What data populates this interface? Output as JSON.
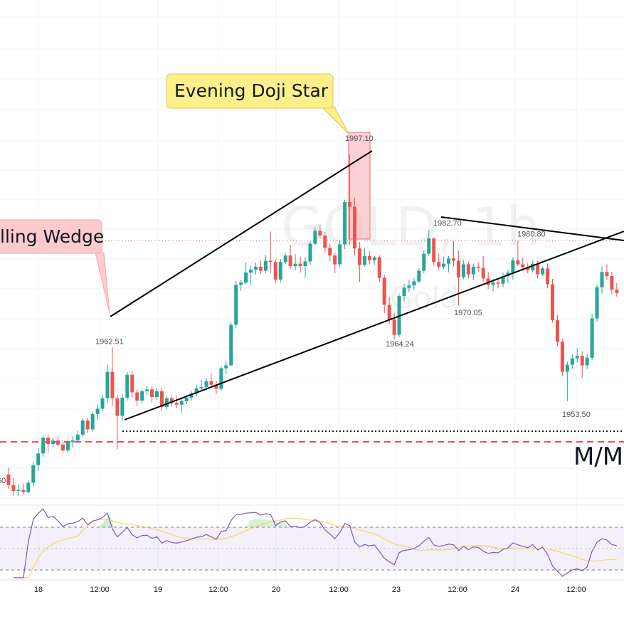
{
  "chart_data": {
    "type": "candlestick",
    "symbol_watermark": "GOLD, 1h",
    "symbol_watermark_sub": "Gold",
    "x_tick_labels": [
      "18",
      "12:00",
      "19",
      "12:00",
      "20",
      "12:00",
      "23",
      "12:00",
      "24",
      "12:00"
    ],
    "price_annotations": [
      {
        "label": "1962.51",
        "price": 1962.51
      },
      {
        "label": "1997.10",
        "price": 1997.1
      },
      {
        "label": "1982.70",
        "price": 1982.7
      },
      {
        "label": "1980.80",
        "price": 1980.8
      },
      {
        "label": "1970.05",
        "price": 1970.05
      },
      {
        "label": "1964.24",
        "price": 1964.24
      },
      {
        "label": "1953.50",
        "price": 1953.5
      },
      {
        "label": "60",
        "price": 1941.0
      }
    ],
    "callouts": [
      {
        "text": "Evening Doji Star",
        "color": "#fdf08a"
      },
      {
        "text": "lling Wedge",
        "color": "#fccbcd"
      }
    ],
    "side_label": "M/M",
    "candles": [
      [
        1941.0,
        1942.2,
        1938.6,
        1939.2
      ],
      [
        1939.2,
        1940.4,
        1937.4,
        1938.2
      ],
      [
        1938.2,
        1939.4,
        1937.3,
        1938.4
      ],
      [
        1938.4,
        1939.5,
        1937.6,
        1938.0
      ],
      [
        1938.0,
        1940.0,
        1937.8,
        1939.6
      ],
      [
        1939.6,
        1943.2,
        1939.0,
        1942.6
      ],
      [
        1942.6,
        1945.5,
        1941.6,
        1944.6
      ],
      [
        1944.6,
        1947.6,
        1944.0,
        1947.3
      ],
      [
        1947.3,
        1947.8,
        1944.7,
        1946.2
      ],
      [
        1946.2,
        1947.2,
        1945.6,
        1946.8
      ],
      [
        1946.8,
        1947.5,
        1945.8,
        1946.1
      ],
      [
        1946.1,
        1946.8,
        1944.7,
        1945.1
      ],
      [
        1945.1,
        1947.0,
        1944.7,
        1946.5
      ],
      [
        1946.5,
        1947.5,
        1945.6,
        1946.8
      ],
      [
        1946.8,
        1948.5,
        1946.4,
        1947.8
      ],
      [
        1947.8,
        1950.6,
        1947.5,
        1950.2
      ],
      [
        1950.2,
        1950.7,
        1948.1,
        1948.7
      ],
      [
        1948.7,
        1951.6,
        1948.3,
        1951.3
      ],
      [
        1951.3,
        1953.0,
        1950.2,
        1952.2
      ],
      [
        1952.2,
        1954.5,
        1951.8,
        1954.0
      ],
      [
        1954.0,
        1959.7,
        1953.1,
        1958.5
      ],
      [
        1958.5,
        1962.7,
        1952.7,
        1954.0
      ],
      [
        1954.0,
        1954.6,
        1945.3,
        1951.0
      ],
      [
        1951.0,
        1954.8,
        1950.1,
        1954.1
      ],
      [
        1954.1,
        1958.5,
        1953.6,
        1958.0
      ],
      [
        1958.0,
        1958.6,
        1954.1,
        1955.0
      ],
      [
        1955.0,
        1955.5,
        1952.7,
        1953.6
      ],
      [
        1953.6,
        1955.5,
        1953.1,
        1955.2
      ],
      [
        1955.2,
        1956.1,
        1954.5,
        1955.5
      ],
      [
        1955.5,
        1956.0,
        1953.2,
        1954.2
      ],
      [
        1954.2,
        1955.8,
        1953.6,
        1955.2
      ],
      [
        1955.2,
        1955.8,
        1951.8,
        1952.5
      ],
      [
        1952.5,
        1954.4,
        1952.1,
        1954.0
      ],
      [
        1954.0,
        1954.6,
        1952.5,
        1953.2
      ],
      [
        1953.2,
        1954.4,
        1952.3,
        1952.9
      ],
      [
        1952.9,
        1954.0,
        1951.5,
        1953.5
      ],
      [
        1953.5,
        1954.6,
        1953.0,
        1954.1
      ],
      [
        1954.1,
        1955.2,
        1953.6,
        1954.8
      ],
      [
        1954.8,
        1956.3,
        1954.3,
        1955.7
      ],
      [
        1955.7,
        1957.1,
        1955.4,
        1955.9
      ],
      [
        1955.9,
        1957.4,
        1955.3,
        1956.9
      ],
      [
        1956.9,
        1958.1,
        1955.9,
        1956.3
      ],
      [
        1956.3,
        1957.0,
        1954.7,
        1955.6
      ],
      [
        1955.6,
        1959.5,
        1955.3,
        1959.1
      ],
      [
        1959.1,
        1960.4,
        1958.1,
        1959.6
      ],
      [
        1959.6,
        1966.9,
        1959.5,
        1966.5
      ],
      [
        1966.5,
        1974.0,
        1966.0,
        1973.3
      ],
      [
        1973.3,
        1974.2,
        1972.3,
        1973.7
      ],
      [
        1973.7,
        1977.1,
        1973.4,
        1975.4
      ],
      [
        1975.4,
        1976.6,
        1973.3,
        1975.9
      ],
      [
        1975.9,
        1977.1,
        1975.1,
        1976.4
      ],
      [
        1976.4,
        1977.4,
        1975.2,
        1975.7
      ],
      [
        1975.7,
        1978.4,
        1975.2,
        1977.4
      ],
      [
        1977.4,
        1982.4,
        1975.3,
        1977.2
      ],
      [
        1977.2,
        1977.6,
        1973.6,
        1974.2
      ],
      [
        1974.2,
        1977.7,
        1973.7,
        1977.2
      ],
      [
        1977.2,
        1978.7,
        1976.8,
        1978.3
      ],
      [
        1978.3,
        1980.1,
        1976.0,
        1976.5
      ],
      [
        1976.5,
        1978.5,
        1975.8,
        1976.9
      ],
      [
        1976.9,
        1978.1,
        1975.4,
        1976.5
      ],
      [
        1976.5,
        1978.0,
        1974.5,
        1977.3
      ],
      [
        1977.3,
        1980.7,
        1976.7,
        1980.3
      ],
      [
        1980.3,
        1983.1,
        1980.1,
        1982.5
      ],
      [
        1982.5,
        1983.6,
        1981.2,
        1981.7
      ],
      [
        1981.7,
        1982.3,
        1978.8,
        1979.6
      ],
      [
        1979.6,
        1980.3,
        1977.3,
        1978.3
      ],
      [
        1978.3,
        1978.7,
        1975.3,
        1976.8
      ],
      [
        1976.8,
        1980.9,
        1976.3,
        1980.2
      ],
      [
        1980.2,
        1987.8,
        1979.4,
        1987.4
      ],
      [
        1987.4,
        1995.6,
        1980.1,
        1986.6
      ],
      [
        1986.6,
        1988.1,
        1978.3,
        1979.5
      ],
      [
        1979.5,
        1980.6,
        1973.8,
        1976.7
      ],
      [
        1976.7,
        1979.5,
        1976.4,
        1978.2
      ],
      [
        1978.2,
        1979.0,
        1976.8,
        1977.5
      ],
      [
        1977.5,
        1978.2,
        1976.7,
        1978.0
      ],
      [
        1978.0,
        1978.4,
        1973.8,
        1974.5
      ],
      [
        1974.5,
        1975.0,
        1968.5,
        1969.9
      ],
      [
        1969.9,
        1971.3,
        1966.7,
        1967.4
      ],
      [
        1967.4,
        1968.5,
        1964.0,
        1964.8
      ],
      [
        1964.8,
        1971.8,
        1964.4,
        1971.4
      ],
      [
        1971.4,
        1973.5,
        1970.5,
        1972.8
      ],
      [
        1972.8,
        1974.2,
        1972.1,
        1973.2
      ],
      [
        1973.2,
        1974.5,
        1972.5,
        1973.9
      ],
      [
        1973.9,
        1976.1,
        1973.6,
        1975.7
      ],
      [
        1975.7,
        1979.2,
        1975.3,
        1978.6
      ],
      [
        1978.6,
        1982.6,
        1978.2,
        1981.2
      ],
      [
        1981.2,
        1981.4,
        1976.5,
        1977.2
      ],
      [
        1977.2,
        1978.7,
        1976.0,
        1976.4
      ],
      [
        1976.4,
        1978.1,
        1976.0,
        1976.9
      ],
      [
        1976.9,
        1978.2,
        1975.4,
        1977.8
      ],
      [
        1977.8,
        1980.8,
        1976.4,
        1977.4
      ],
      [
        1977.4,
        1979.1,
        1969.8,
        1974.6
      ],
      [
        1974.6,
        1977.5,
        1974.3,
        1976.8
      ],
      [
        1976.8,
        1977.3,
        1974.4,
        1975.1
      ],
      [
        1975.1,
        1976.9,
        1974.1,
        1976.4
      ],
      [
        1976.4,
        1977.1,
        1975.6,
        1976.2
      ],
      [
        1976.2,
        1978.2,
        1973.8,
        1974.4
      ],
      [
        1974.4,
        1975.5,
        1972.6,
        1973.3
      ],
      [
        1973.3,
        1974.3,
        1972.2,
        1973.7
      ],
      [
        1973.7,
        1974.4,
        1972.7,
        1973.5
      ],
      [
        1973.5,
        1975.4,
        1972.9,
        1974.8
      ],
      [
        1974.8,
        1975.9,
        1973.6,
        1975.4
      ],
      [
        1975.4,
        1978.0,
        1974.2,
        1977.5
      ],
      [
        1977.5,
        1980.8,
        1976.5,
        1976.8
      ],
      [
        1976.8,
        1977.9,
        1975.6,
        1976.3
      ],
      [
        1976.3,
        1977.0,
        1975.3,
        1975.8
      ],
      [
        1975.8,
        1977.5,
        1975.4,
        1976.9
      ],
      [
        1976.9,
        1977.4,
        1974.4,
        1975.1
      ],
      [
        1975.1,
        1976.4,
        1974.8,
        1976.1
      ],
      [
        1976.1,
        1976.9,
        1972.7,
        1973.4
      ],
      [
        1973.4,
        1974.3,
        1966.9,
        1967.3
      ],
      [
        1967.3,
        1968.1,
        1962.8,
        1963.6
      ],
      [
        1963.6,
        1964.1,
        1957.8,
        1958.5
      ],
      [
        1958.5,
        1960.2,
        1953.5,
        1959.7
      ],
      [
        1959.7,
        1961.5,
        1959.0,
        1960.8
      ],
      [
        1960.8,
        1962.5,
        1960.1,
        1961.2
      ],
      [
        1961.2,
        1962.0,
        1957.5,
        1959.6
      ],
      [
        1959.6,
        1961.5,
        1959.0,
        1960.9
      ],
      [
        1960.9,
        1968.4,
        1960.5,
        1967.6
      ],
      [
        1967.6,
        1973.4,
        1967.0,
        1972.9
      ],
      [
        1972.9,
        1976.4,
        1971.8,
        1975.5
      ],
      [
        1975.5,
        1976.8,
        1974.2,
        1974.8
      ],
      [
        1974.8,
        1975.5,
        1971.7,
        1972.5
      ],
      [
        1972.5,
        1973.6,
        1971.3,
        1971.9
      ]
    ]
  }
}
